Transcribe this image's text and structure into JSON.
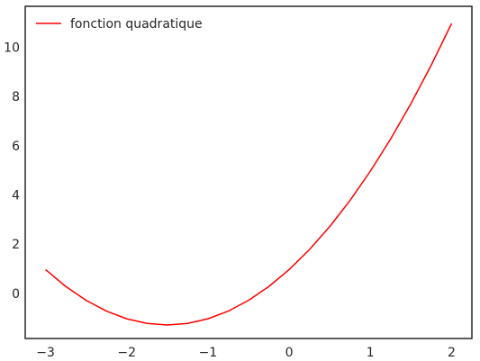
{
  "chart_data": {
    "type": "line",
    "title": "",
    "xlabel": "",
    "ylabel": "",
    "xlim": [
      -3.25,
      2.25
    ],
    "ylim": [
      -1.8,
      11.7
    ],
    "grid": false,
    "legend": {
      "placement": "top-left",
      "entries": [
        "fonction quadratique"
      ]
    },
    "x_ticks": [
      -3,
      -2,
      -1,
      0,
      1,
      2
    ],
    "x_tick_labels": [
      "−3",
      "−2",
      "−1",
      "0",
      "1",
      "2"
    ],
    "y_ticks": [
      0,
      2,
      4,
      6,
      8,
      10
    ],
    "y_tick_labels": [
      "0",
      "2",
      "4",
      "6",
      "8",
      "10"
    ],
    "series": [
      {
        "name": "fonction quadratique",
        "color": "#ff0000",
        "x": [
          -3.0,
          -2.75,
          -2.5,
          -2.25,
          -2.0,
          -1.75,
          -1.5,
          -1.25,
          -1.0,
          -0.75,
          -0.5,
          -0.25,
          0.0,
          0.25,
          0.5,
          0.75,
          1.0,
          1.25,
          1.5,
          1.75,
          2.0
        ],
        "y": [
          1.0,
          0.3125,
          -0.25,
          -0.6875,
          -1.0,
          -1.1875,
          -1.25,
          -1.1875,
          -1.0,
          -0.6875,
          -0.25,
          0.3125,
          1.0,
          1.8125,
          2.75,
          3.8125,
          5.0,
          6.3125,
          7.75,
          9.3125,
          11.0
        ]
      }
    ]
  }
}
